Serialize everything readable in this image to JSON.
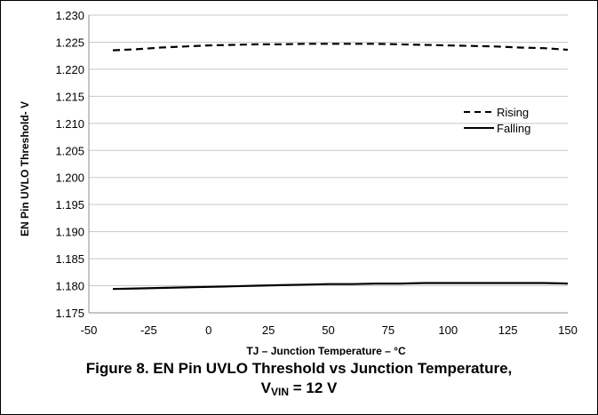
{
  "chart_data": {
    "type": "line",
    "xlabel": "TJ – Junction Temperature – °C",
    "ylabel": "EN Pin UVLO Threshold- V",
    "xlim": [
      -50,
      150
    ],
    "ylim": [
      1.175,
      1.23
    ],
    "x_ticks": [
      "-50",
      "-25",
      "0",
      "25",
      "50",
      "75",
      "100",
      "125",
      "150"
    ],
    "y_ticks": [
      "1.230",
      "1.225",
      "1.220",
      "1.215",
      "1.210",
      "1.205",
      "1.200",
      "1.195",
      "1.190",
      "1.185",
      "1.180",
      "1.175"
    ],
    "grid": "horizontal",
    "legend_position": "right",
    "series": [
      {
        "name": "Rising",
        "style": "dashed",
        "color": "#000000",
        "x": [
          -40,
          -30,
          -20,
          -10,
          0,
          10,
          20,
          30,
          40,
          50,
          60,
          70,
          80,
          90,
          100,
          110,
          120,
          130,
          140,
          150
        ],
        "y": [
          1.2235,
          1.2237,
          1.224,
          1.2242,
          1.2244,
          1.2245,
          1.2246,
          1.2246,
          1.2247,
          1.2247,
          1.2247,
          1.2247,
          1.2246,
          1.2245,
          1.2244,
          1.2243,
          1.2242,
          1.224,
          1.2239,
          1.2236
        ]
      },
      {
        "name": "Falling",
        "style": "solid",
        "color": "#000000",
        "x": [
          -40,
          -30,
          -20,
          -10,
          0,
          10,
          20,
          30,
          40,
          50,
          60,
          70,
          80,
          90,
          100,
          110,
          120,
          130,
          140,
          150
        ],
        "y": [
          1.1794,
          1.1795,
          1.1796,
          1.1797,
          1.1798,
          1.1799,
          1.18,
          1.1801,
          1.1802,
          1.1803,
          1.1803,
          1.1804,
          1.1804,
          1.1805,
          1.1805,
          1.1805,
          1.1805,
          1.1805,
          1.1805,
          1.1804
        ]
      }
    ]
  },
  "caption": {
    "line1": "Figure 8. EN Pin UVLO Threshold vs Junction Temperature,",
    "line2_main": "V",
    "line2_sub": "VIN",
    "line2_rest": " = 12 V"
  }
}
